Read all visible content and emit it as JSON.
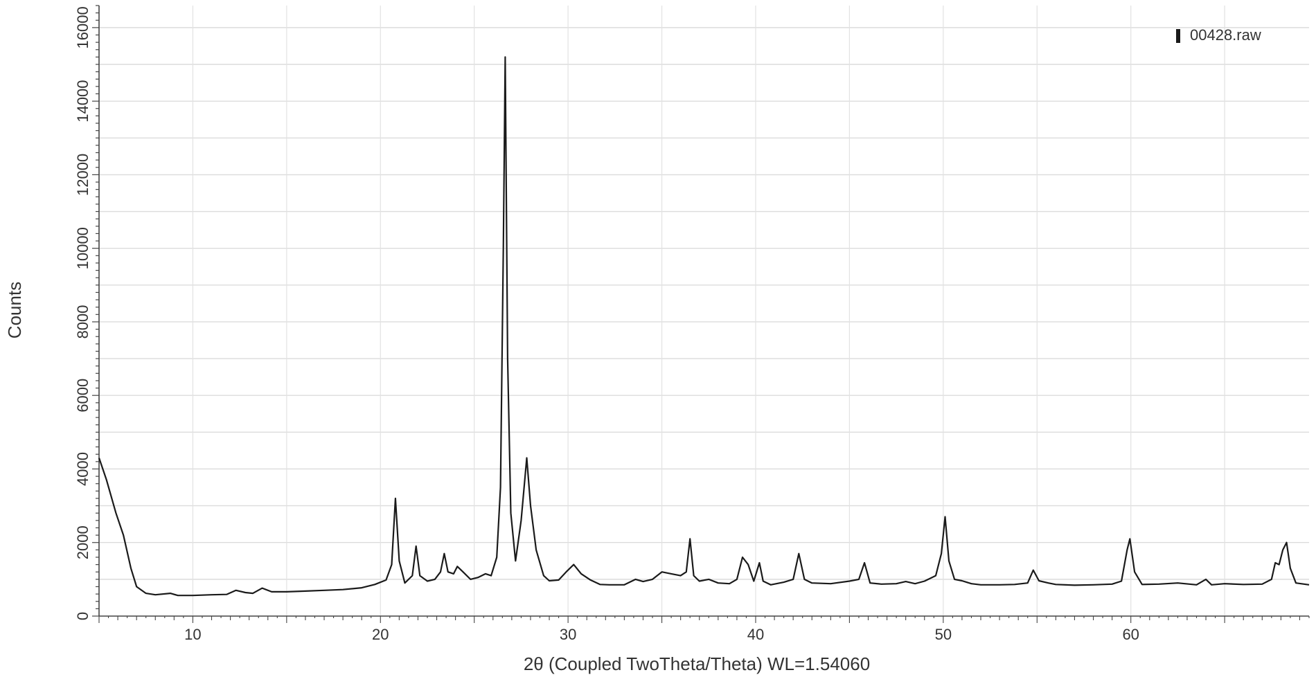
{
  "chart_data": {
    "type": "line",
    "title": "",
    "xlabel": "2θ (Coupled TwoTheta/Theta) WL=1.54060",
    "ylabel": "Counts",
    "xlim": [
      5,
      69.5
    ],
    "ylim": [
      0,
      16600
    ],
    "x_ticks": [
      10,
      20,
      30,
      40,
      50,
      60
    ],
    "y_ticks": [
      0,
      2000,
      4000,
      6000,
      8000,
      10000,
      12000,
      14000,
      16000
    ],
    "grid": true,
    "legend_position": "top-right",
    "series": [
      {
        "name": "00428.raw",
        "color": "#1a1a1a",
        "points": [
          [
            5.0,
            4300
          ],
          [
            5.4,
            3700
          ],
          [
            5.9,
            2800
          ],
          [
            6.3,
            2200
          ],
          [
            6.7,
            1300
          ],
          [
            7.0,
            800
          ],
          [
            7.5,
            620
          ],
          [
            8.0,
            580
          ],
          [
            8.8,
            620
          ],
          [
            9.2,
            560
          ],
          [
            10.0,
            560
          ],
          [
            11.0,
            580
          ],
          [
            11.8,
            590
          ],
          [
            12.3,
            700
          ],
          [
            12.8,
            640
          ],
          [
            13.2,
            620
          ],
          [
            13.7,
            760
          ],
          [
            14.2,
            660
          ],
          [
            15.0,
            660
          ],
          [
            16.0,
            680
          ],
          [
            17.0,
            700
          ],
          [
            18.0,
            720
          ],
          [
            19.0,
            770
          ],
          [
            19.7,
            860
          ],
          [
            20.3,
            980
          ],
          [
            20.6,
            1400
          ],
          [
            20.8,
            3200
          ],
          [
            21.0,
            1500
          ],
          [
            21.3,
            900
          ],
          [
            21.7,
            1100
          ],
          [
            21.9,
            1900
          ],
          [
            22.1,
            1100
          ],
          [
            22.5,
            950
          ],
          [
            22.9,
            1000
          ],
          [
            23.2,
            1200
          ],
          [
            23.4,
            1700
          ],
          [
            23.6,
            1200
          ],
          [
            23.9,
            1150
          ],
          [
            24.1,
            1350
          ],
          [
            24.4,
            1200
          ],
          [
            24.8,
            1000
          ],
          [
            25.2,
            1050
          ],
          [
            25.6,
            1150
          ],
          [
            25.9,
            1100
          ],
          [
            26.2,
            1600
          ],
          [
            26.4,
            3500
          ],
          [
            26.55,
            10000
          ],
          [
            26.65,
            15200
          ],
          [
            26.78,
            7000
          ],
          [
            26.95,
            2800
          ],
          [
            27.2,
            1500
          ],
          [
            27.5,
            2600
          ],
          [
            27.8,
            4300
          ],
          [
            28.0,
            3000
          ],
          [
            28.3,
            1800
          ],
          [
            28.7,
            1100
          ],
          [
            29.0,
            960
          ],
          [
            29.5,
            980
          ],
          [
            29.9,
            1200
          ],
          [
            30.3,
            1400
          ],
          [
            30.7,
            1150
          ],
          [
            31.2,
            980
          ],
          [
            31.7,
            860
          ],
          [
            32.2,
            850
          ],
          [
            33.0,
            850
          ],
          [
            33.6,
            1000
          ],
          [
            34.0,
            940
          ],
          [
            34.5,
            1000
          ],
          [
            35.0,
            1200
          ],
          [
            35.5,
            1150
          ],
          [
            36.0,
            1100
          ],
          [
            36.3,
            1200
          ],
          [
            36.5,
            2100
          ],
          [
            36.7,
            1100
          ],
          [
            37.0,
            950
          ],
          [
            37.5,
            1000
          ],
          [
            38.0,
            900
          ],
          [
            38.6,
            880
          ],
          [
            39.0,
            1000
          ],
          [
            39.3,
            1600
          ],
          [
            39.6,
            1400
          ],
          [
            39.9,
            950
          ],
          [
            40.2,
            1450
          ],
          [
            40.4,
            950
          ],
          [
            40.8,
            850
          ],
          [
            41.5,
            920
          ],
          [
            42.0,
            1000
          ],
          [
            42.3,
            1700
          ],
          [
            42.6,
            1000
          ],
          [
            43.0,
            900
          ],
          [
            44.0,
            880
          ],
          [
            45.0,
            950
          ],
          [
            45.5,
            1000
          ],
          [
            45.8,
            1450
          ],
          [
            46.1,
            900
          ],
          [
            46.7,
            870
          ],
          [
            47.5,
            880
          ],
          [
            48.0,
            940
          ],
          [
            48.5,
            880
          ],
          [
            49.0,
            950
          ],
          [
            49.6,
            1100
          ],
          [
            49.9,
            1700
          ],
          [
            50.1,
            2700
          ],
          [
            50.3,
            1500
          ],
          [
            50.6,
            1000
          ],
          [
            51.0,
            960
          ],
          [
            51.5,
            880
          ],
          [
            52.0,
            850
          ],
          [
            53.0,
            850
          ],
          [
            53.8,
            860
          ],
          [
            54.5,
            900
          ],
          [
            54.8,
            1250
          ],
          [
            55.1,
            960
          ],
          [
            55.6,
            900
          ],
          [
            56.0,
            860
          ],
          [
            57.0,
            840
          ],
          [
            58.0,
            850
          ],
          [
            59.0,
            870
          ],
          [
            59.5,
            950
          ],
          [
            59.8,
            1800
          ],
          [
            59.95,
            2100
          ],
          [
            60.2,
            1200
          ],
          [
            60.6,
            860
          ],
          [
            61.5,
            870
          ],
          [
            62.5,
            900
          ],
          [
            63.5,
            850
          ],
          [
            64.0,
            1000
          ],
          [
            64.3,
            850
          ],
          [
            65.0,
            880
          ],
          [
            66.0,
            860
          ],
          [
            67.0,
            870
          ],
          [
            67.5,
            1000
          ],
          [
            67.7,
            1450
          ],
          [
            67.9,
            1400
          ],
          [
            68.1,
            1800
          ],
          [
            68.3,
            2000
          ],
          [
            68.5,
            1300
          ],
          [
            68.8,
            900
          ],
          [
            69.5,
            850
          ]
        ]
      }
    ]
  }
}
